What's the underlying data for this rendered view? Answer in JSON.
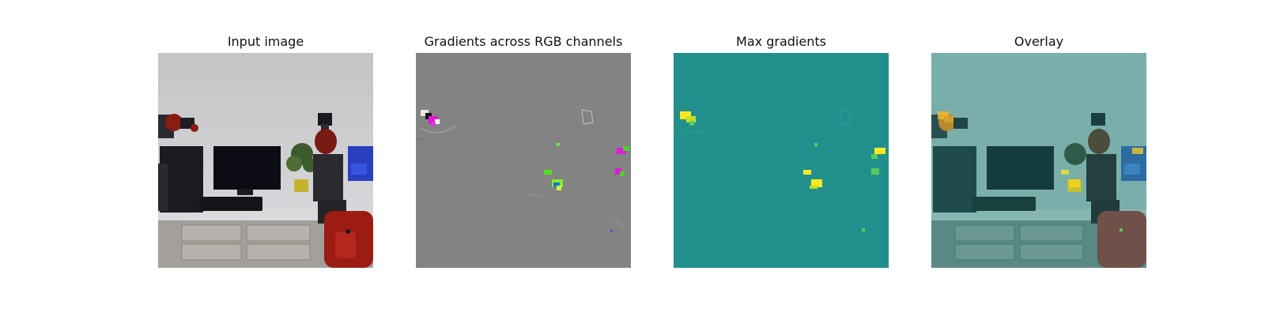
{
  "figure": {
    "panels": [
      {
        "title": "Input image",
        "image": "robot-lab-scene"
      },
      {
        "title": "Gradients across RGB channels",
        "image": "rgb-gradient-map"
      },
      {
        "title": "Max gradients",
        "image": "max-gradient-heatmap"
      },
      {
        "title": "Overlay",
        "image": "heatmap-overlay"
      }
    ],
    "colors": {
      "gradient_background": "#838383",
      "heatmap_background": "#21908d",
      "heatmap_high": "#fde725",
      "heatmap_mid": "#5ec962",
      "gradient_magenta": "#e019d8"
    }
  }
}
